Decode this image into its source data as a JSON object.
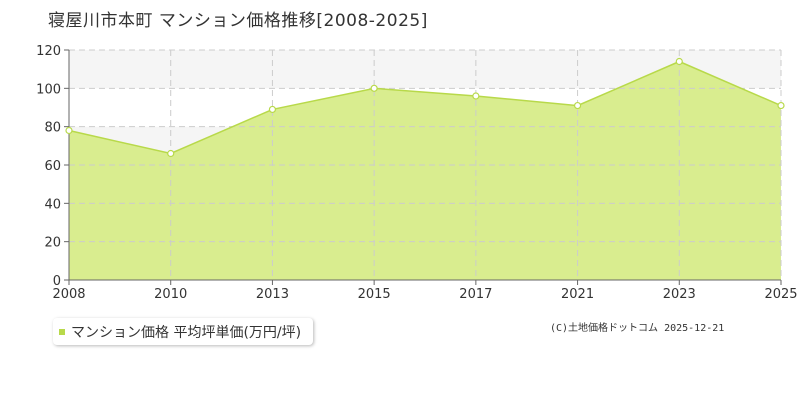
{
  "title": "寝屋川市本町 マンション価格推移[2008-2025]",
  "legend": {
    "label": "マンション価格 平均坪単価(万円/坪)"
  },
  "copyright": "(C)土地価格ドットコム 2025-12-21",
  "colors": {
    "fill": "#d9ed8f",
    "line": "#b8d94a",
    "grid": "#cccccc",
    "band": "#f5f5f5"
  },
  "chart_data": {
    "type": "area",
    "title": "寝屋川市本町 マンション価格推移[2008-2025]",
    "x": [
      "2008",
      "2010",
      "2013",
      "2015",
      "2017",
      "2021",
      "2023",
      "2025"
    ],
    "series": [
      {
        "name": "マンション価格 平均坪単価(万円/坪)",
        "values": [
          78,
          66,
          89,
          100,
          96,
          91,
          114,
          91
        ]
      }
    ],
    "yticks": [
      0,
      20,
      40,
      60,
      80,
      100,
      120
    ],
    "ylim": [
      0,
      120
    ],
    "grid": true,
    "legend_position": "bottom-left"
  }
}
